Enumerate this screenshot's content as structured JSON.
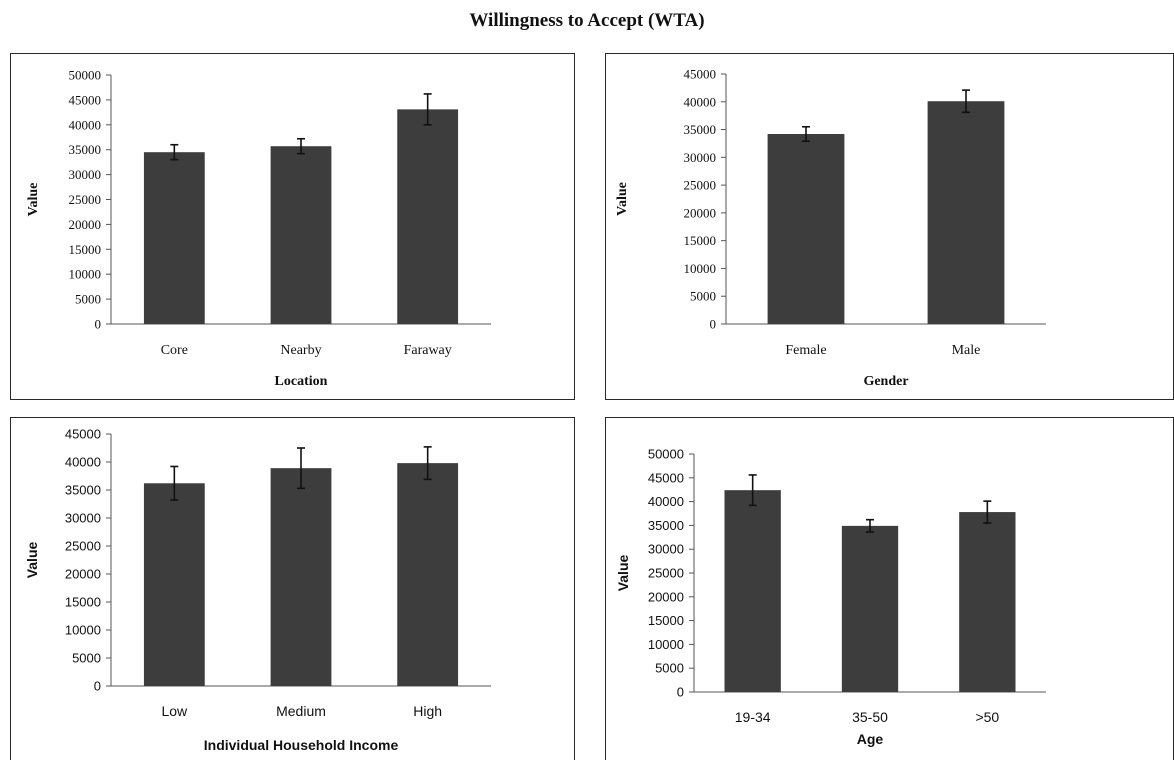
{
  "title": "Willingness to Accept (WTA)",
  "colors": {
    "bar": "#3d3d3d",
    "frame": "#2a2a2a"
  },
  "chart_data": [
    {
      "type": "bar",
      "xlabel": "Location",
      "ylabel": "Value",
      "ylim": [
        0,
        50000
      ],
      "yticks": [
        0,
        5000,
        10000,
        15000,
        20000,
        25000,
        30000,
        35000,
        40000,
        45000,
        50000
      ],
      "categories": [
        "Core",
        "Nearby",
        "Faraway"
      ],
      "values": [
        34500,
        35700,
        43100
      ],
      "errors": [
        1500,
        1500,
        3100
      ],
      "grid": false
    },
    {
      "type": "bar",
      "xlabel": "Gender",
      "ylabel": "Value",
      "ylim": [
        0,
        45000
      ],
      "yticks": [
        0,
        5000,
        10000,
        15000,
        20000,
        25000,
        30000,
        35000,
        40000,
        45000
      ],
      "categories": [
        "Female",
        "Male"
      ],
      "values": [
        34200,
        40100
      ],
      "errors": [
        1300,
        2000
      ],
      "grid": false
    },
    {
      "type": "bar",
      "xlabel": "Individual Household Income",
      "ylabel": "Value",
      "ylim": [
        0,
        45000
      ],
      "yticks": [
        0,
        5000,
        10000,
        15000,
        20000,
        25000,
        30000,
        35000,
        40000,
        45000
      ],
      "categories": [
        "Low",
        "Medium",
        "High"
      ],
      "values": [
        36200,
        38900,
        39800
      ],
      "errors": [
        3000,
        3600,
        2900
      ],
      "grid": false
    },
    {
      "type": "bar",
      "xlabel": "Age",
      "ylabel": "Value",
      "ylim": [
        0,
        50000
      ],
      "yticks": [
        0,
        5000,
        10000,
        15000,
        20000,
        25000,
        30000,
        35000,
        40000,
        45000,
        50000
      ],
      "categories": [
        "19-34",
        "35-50",
        ">50"
      ],
      "values": [
        42400,
        34900,
        37800
      ],
      "errors": [
        3200,
        1300,
        2300
      ],
      "grid": false
    }
  ]
}
